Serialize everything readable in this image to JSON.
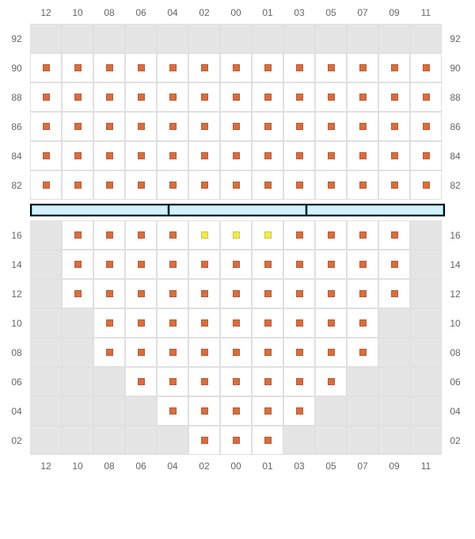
{
  "chart": {
    "type": "seating-grid",
    "columns": [
      "12",
      "10",
      "08",
      "06",
      "04",
      "02",
      "00",
      "01",
      "03",
      "05",
      "07",
      "09",
      "11"
    ],
    "colors": {
      "seat": "#d86d3f",
      "highlight": "#f2e94e",
      "empty_bg": "#e5e5e5",
      "cell_bg": "#ffffff",
      "grid": "#e0e0e0",
      "sep_bg": "#000000",
      "sep_box_fill": "#d4f0fb",
      "sep_box_border": "#6ec8e8",
      "label": "#666666"
    },
    "upper": {
      "rows": [
        {
          "label": "92",
          "cells": [
            0,
            0,
            0,
            0,
            0,
            0,
            0,
            0,
            0,
            0,
            0,
            0,
            0
          ]
        },
        {
          "label": "90",
          "cells": [
            1,
            1,
            1,
            1,
            1,
            1,
            1,
            1,
            1,
            1,
            1,
            1,
            1
          ]
        },
        {
          "label": "88",
          "cells": [
            1,
            1,
            1,
            1,
            1,
            1,
            1,
            1,
            1,
            1,
            1,
            1,
            1
          ]
        },
        {
          "label": "86",
          "cells": [
            1,
            1,
            1,
            1,
            1,
            1,
            1,
            1,
            1,
            1,
            1,
            1,
            1
          ]
        },
        {
          "label": "84",
          "cells": [
            1,
            1,
            1,
            1,
            1,
            1,
            1,
            1,
            1,
            1,
            1,
            1,
            1
          ]
        },
        {
          "label": "82",
          "cells": [
            1,
            1,
            1,
            1,
            1,
            1,
            1,
            1,
            1,
            1,
            1,
            1,
            1
          ]
        }
      ]
    },
    "lower": {
      "rows": [
        {
          "label": "16",
          "cells": [
            0,
            1,
            1,
            1,
            1,
            2,
            2,
            2,
            1,
            1,
            1,
            1,
            0
          ]
        },
        {
          "label": "14",
          "cells": [
            0,
            1,
            1,
            1,
            1,
            1,
            1,
            1,
            1,
            1,
            1,
            1,
            0
          ]
        },
        {
          "label": "12",
          "cells": [
            0,
            1,
            1,
            1,
            1,
            1,
            1,
            1,
            1,
            1,
            1,
            1,
            0
          ]
        },
        {
          "label": "10",
          "cells": [
            0,
            0,
            1,
            1,
            1,
            1,
            1,
            1,
            1,
            1,
            1,
            0,
            0
          ]
        },
        {
          "label": "08",
          "cells": [
            0,
            0,
            1,
            1,
            1,
            1,
            1,
            1,
            1,
            1,
            1,
            0,
            0
          ]
        },
        {
          "label": "06",
          "cells": [
            0,
            0,
            0,
            1,
            1,
            1,
            1,
            1,
            1,
            1,
            0,
            0,
            0
          ]
        },
        {
          "label": "04",
          "cells": [
            0,
            0,
            0,
            0,
            1,
            1,
            1,
            1,
            1,
            0,
            0,
            0,
            0
          ]
        },
        {
          "label": "02",
          "cells": [
            0,
            0,
            0,
            0,
            0,
            1,
            1,
            1,
            0,
            0,
            0,
            0,
            0
          ]
        }
      ]
    },
    "separator_segments": 3,
    "font_size_label": 12
  }
}
